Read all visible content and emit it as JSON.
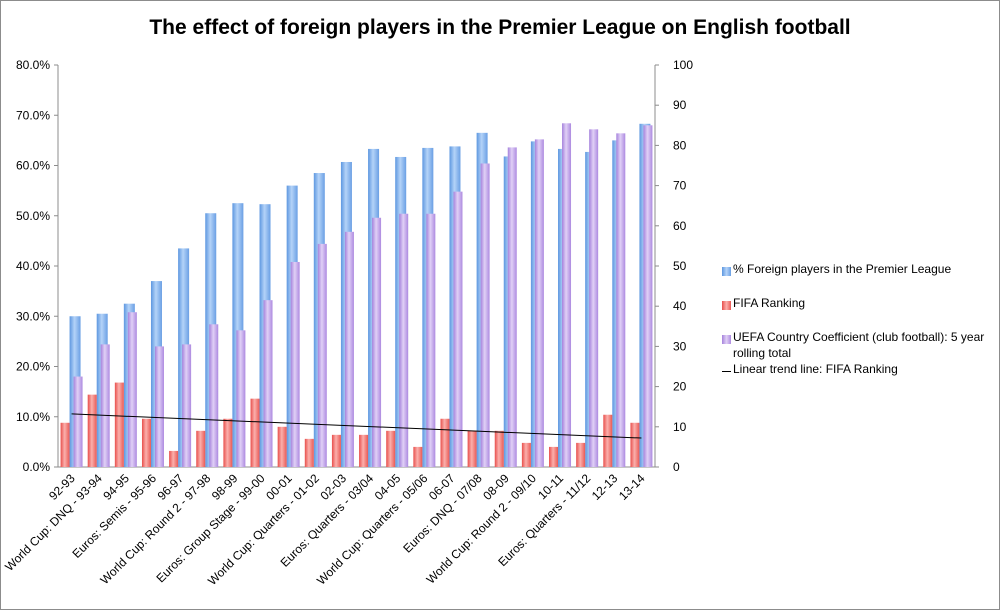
{
  "chart_data": {
    "type": "bar",
    "title": "The effect of foreign players in the Premier League on English football",
    "categories": [
      "92-93",
      "World Cup: DNQ - 93-94",
      "94-95",
      "Euros: Semis - 95-96",
      "96-97",
      "World Cup: Round 2 - 97-98",
      "98-99",
      "Euros: Group Stage - 99-00",
      "00-01",
      "World Cup: Quarters - 01-02",
      "02-03",
      "Euros: Quarters - 03/04",
      "04-05",
      "World Cup: Quarters - 05/06",
      "06-07",
      "Euros: DNQ - 07/08",
      "08-09",
      "World Cup: Round 2 - 09/10",
      "10-11",
      "Euros: Quarters - 11/12",
      "12-13",
      "13-14"
    ],
    "series": [
      {
        "name": "% Foreign players in the Premier League",
        "axis": "left",
        "color": "#7fb2ee",
        "values": [
          30.0,
          30.5,
          32.5,
          37.0,
          43.5,
          50.5,
          52.5,
          52.3,
          56.0,
          58.5,
          60.7,
          63.3,
          61.7,
          63.5,
          63.8,
          66.5,
          61.8,
          64.8,
          63.3,
          62.7,
          65.0,
          68.3
        ]
      },
      {
        "name": "FIFA Ranking",
        "axis": "right",
        "color": "#f06a66",
        "values": [
          11,
          18,
          21,
          12,
          4,
          9,
          12,
          17,
          10,
          7,
          8,
          8,
          9,
          5,
          12,
          9,
          9,
          6,
          5,
          6,
          13,
          11
        ]
      },
      {
        "name": "UEFA Country Coefficient (club football): 5 year rolling total",
        "axis": "right",
        "color": "#c3a6ea",
        "values": [
          22.5,
          30.5,
          38.5,
          30.0,
          30.5,
          35.5,
          34.0,
          41.5,
          51.0,
          55.5,
          58.5,
          62.0,
          63.0,
          63.0,
          68.5,
          75.5,
          79.5,
          81.5,
          85.5,
          84.0,
          83.0,
          85.0
        ]
      }
    ],
    "trend_line": {
      "name": "Linear trend line: FIFA Ranking",
      "axis": "right",
      "start": 13.2,
      "end": 7.2,
      "color": "#000000"
    },
    "left_axis": {
      "min": 0,
      "max": 80,
      "step": 10,
      "suffix": "%",
      "decimals": 1
    },
    "right_axis": {
      "min": 0,
      "max": 100,
      "step": 10
    },
    "grid": false,
    "legend_position": "right"
  }
}
